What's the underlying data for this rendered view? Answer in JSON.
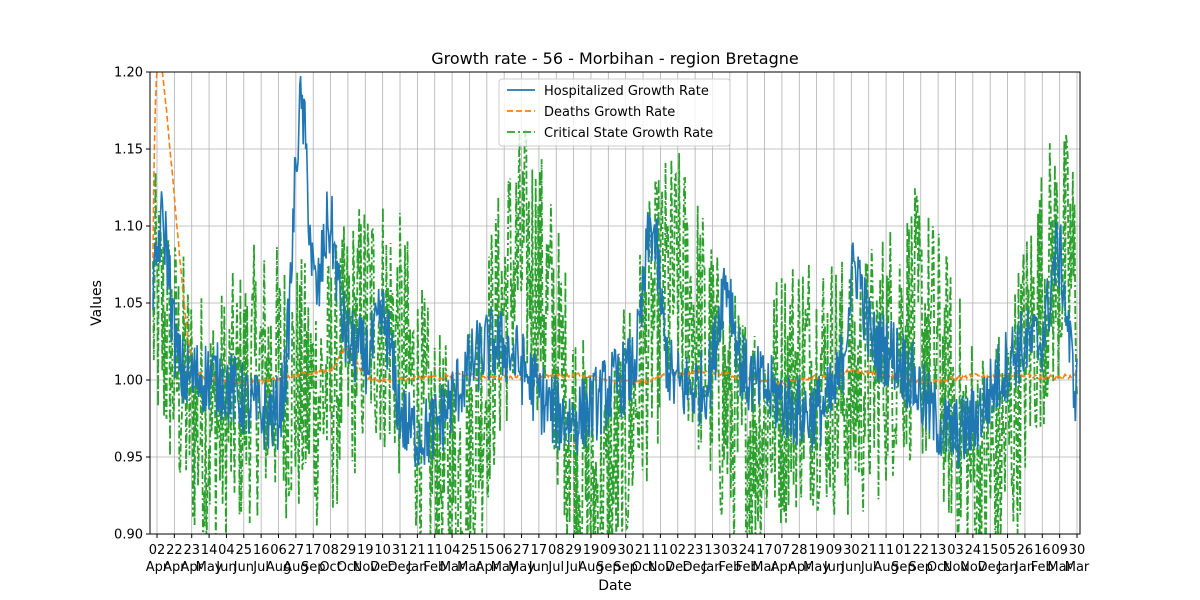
{
  "chart_data": {
    "type": "line",
    "title": "Growth rate - 56 - Morbihan - region Bretagne",
    "xlabel": "Date",
    "ylabel": "Values",
    "ylim": [
      0.9,
      1.2
    ],
    "yticks": [
      "0.90",
      "0.95",
      "1.00",
      "1.05",
      "1.10",
      "1.15",
      "1.20"
    ],
    "grid": true,
    "legend_position": "top-center",
    "x_start": "2020-04-02",
    "x_end": "2023-03-30",
    "x_ticks": [
      {
        "day": "02",
        "month": "Apr"
      },
      {
        "day": "22",
        "month": "Apr"
      },
      {
        "day": "23",
        "month": "Apr"
      },
      {
        "day": "14",
        "month": "May"
      },
      {
        "day": "04",
        "month": "Jun"
      },
      {
        "day": "25",
        "month": "Jun"
      },
      {
        "day": "16",
        "month": "Jul"
      },
      {
        "day": "06",
        "month": "Aug"
      },
      {
        "day": "27",
        "month": "Aug"
      },
      {
        "day": "17",
        "month": "Sep"
      },
      {
        "day": "08",
        "month": "Oct"
      },
      {
        "day": "29",
        "month": "Oct"
      },
      {
        "day": "19",
        "month": "Nov"
      },
      {
        "day": "10",
        "month": "Dec"
      },
      {
        "day": "31",
        "month": "Dec"
      },
      {
        "day": "21",
        "month": "Jan"
      },
      {
        "day": "11",
        "month": "Feb"
      },
      {
        "day": "04",
        "month": "Mar"
      },
      {
        "day": "25",
        "month": "Mar"
      },
      {
        "day": "15",
        "month": "Apr"
      },
      {
        "day": "06",
        "month": "May"
      },
      {
        "day": "27",
        "month": "May"
      },
      {
        "day": "17",
        "month": "Jun"
      },
      {
        "day": "08",
        "month": "Jul"
      },
      {
        "day": "29",
        "month": "Jul"
      },
      {
        "day": "19",
        "month": "Aug"
      },
      {
        "day": "09",
        "month": "Sep"
      },
      {
        "day": "30",
        "month": "Sep"
      },
      {
        "day": "21",
        "month": "Oct"
      },
      {
        "day": "11",
        "month": "Nov"
      },
      {
        "day": "02",
        "month": "Dec"
      },
      {
        "day": "23",
        "month": "Dec"
      },
      {
        "day": "13",
        "month": "Jan"
      },
      {
        "day": "03",
        "month": "Feb"
      },
      {
        "day": "24",
        "month": "Feb"
      },
      {
        "day": "17",
        "month": "Mar"
      },
      {
        "day": "07",
        "month": "Apr"
      },
      {
        "day": "28",
        "month": "Apr"
      },
      {
        "day": "19",
        "month": "May"
      },
      {
        "day": "09",
        "month": "Jun"
      },
      {
        "day": "30",
        "month": "Jun"
      },
      {
        "day": "21",
        "month": "Jul"
      },
      {
        "day": "11",
        "month": "Aug"
      },
      {
        "day": "01",
        "month": "Sep"
      },
      {
        "day": "22",
        "month": "Sep"
      },
      {
        "day": "13",
        "month": "Oct"
      },
      {
        "day": "03",
        "month": "Nov"
      },
      {
        "day": "24",
        "month": "Nov"
      },
      {
        "day": "15",
        "month": "Dec"
      },
      {
        "day": "05",
        "month": "Jan"
      },
      {
        "day": "26",
        "month": "Jan"
      },
      {
        "day": "16",
        "month": "Feb"
      },
      {
        "day": "09",
        "month": "Mar"
      },
      {
        "day": "30",
        "month": "Mar"
      }
    ],
    "series": [
      {
        "name": "Hospitalized Growth Rate",
        "color": "#1f77b4",
        "style": "solid",
        "base": 0.995,
        "amplitude": 0.03,
        "noise": 0.025,
        "peaks": [
          {
            "t": 0.01,
            "v": 1.1
          },
          {
            "t": 0.16,
            "v": 1.18
          },
          {
            "t": 0.19,
            "v": 1.08
          },
          {
            "t": 0.25,
            "v": 1.04
          },
          {
            "t": 0.54,
            "v": 1.09
          },
          {
            "t": 0.62,
            "v": 1.06
          },
          {
            "t": 0.76,
            "v": 1.06
          },
          {
            "t": 0.98,
            "v": 1.07
          }
        ]
      },
      {
        "name": "Deaths Growth Rate",
        "color": "#ff7f0e",
        "style": "dashed",
        "base": 1.002,
        "amplitude": 0.004,
        "noise": 0.003,
        "peaks": [
          {
            "t": 0.002,
            "v": 1.18
          },
          {
            "t": 0.015,
            "v": 1.08
          },
          {
            "t": 0.025,
            "v": 1.05
          },
          {
            "t": 0.21,
            "v": 1.02
          }
        ]
      },
      {
        "name": "Critical State Growth Rate",
        "color": "#2ca02c",
        "style": "dashdot",
        "base": 1.0,
        "amplitude": 0.08,
        "noise": 0.09,
        "peaks": []
      }
    ]
  }
}
